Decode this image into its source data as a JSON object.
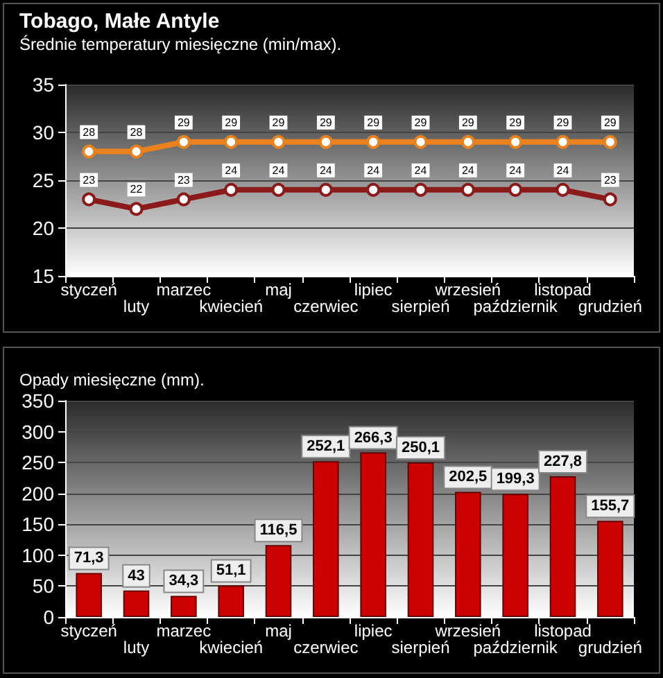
{
  "chart_data": [
    {
      "type": "line",
      "title": "Tobago, Małe Antyle",
      "subtitle": "Średnie temperatury miesięczne (min/max).",
      "categories": [
        "styczeń",
        "luty",
        "marzec",
        "kwiecień",
        "maj",
        "czerwiec",
        "lipiec",
        "sierpień",
        "wrzesień",
        "październik",
        "listopad",
        "grudzień"
      ],
      "series": [
        {
          "color": "#e8821e",
          "values": [
            28,
            28,
            29,
            29,
            29,
            29,
            29,
            29,
            29,
            29,
            29,
            29
          ]
        },
        {
          "color": "#8b1a1a",
          "values": [
            23,
            22,
            23,
            24,
            24,
            24,
            24,
            24,
            24,
            24,
            24,
            23
          ]
        }
      ],
      "ylim": [
        15,
        35
      ],
      "yticks": [
        15,
        20,
        25,
        30,
        35
      ],
      "grid": "y",
      "marker": "circle",
      "line_style": "solid",
      "data_labels": true
    },
    {
      "type": "bar",
      "title": "Opady miesięczne (mm).",
      "categories": [
        "styczeń",
        "luty",
        "marzec",
        "kwiecień",
        "maj",
        "czerwiec",
        "lipiec",
        "sierpień",
        "wrzesień",
        "październik",
        "listopad",
        "grudzień"
      ],
      "values": [
        71.3,
        43,
        34.3,
        51.1,
        116.5,
        252.1,
        266.3,
        250.1,
        202.5,
        199.3,
        227.8,
        155.7
      ],
      "value_labels": [
        "71,3",
        "43",
        "34,3",
        "51,1",
        "116,5",
        "252,1",
        "266,3",
        "250,1",
        "202,5",
        "199,3",
        "227,8",
        "155,7"
      ],
      "color": "#cc0000",
      "ylim": [
        0,
        350
      ],
      "yticks": [
        0,
        50,
        100,
        150,
        200,
        250,
        300,
        350
      ],
      "grid": "y"
    }
  ]
}
